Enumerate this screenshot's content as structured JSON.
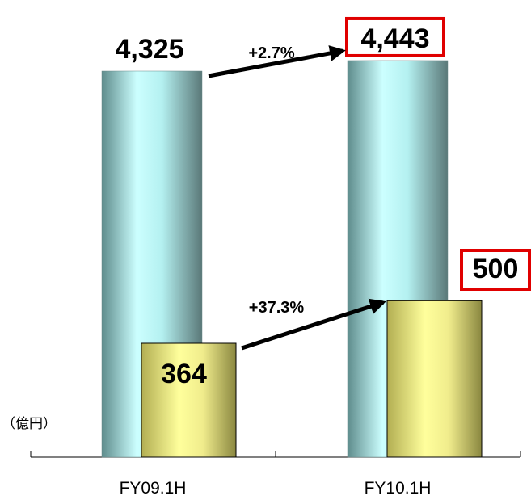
{
  "chart_data": {
    "type": "bar",
    "unit_label": "（億円）",
    "categories": [
      "FY09.1H",
      "FY10.1H"
    ],
    "series": [
      {
        "values": [
          4325,
          4443
        ],
        "labels": [
          "4,325",
          "4,443"
        ],
        "color": "#9fdede"
      },
      {
        "values": [
          364,
          500
        ],
        "labels": [
          "364",
          "500"
        ],
        "color": "#e8e48a"
      }
    ],
    "growth": [
      {
        "series_index": 0,
        "label": "+2.7%"
      },
      {
        "series_index": 1,
        "label": "+37.3%"
      }
    ],
    "highlight_color": "#e00000",
    "highlighted_category_index": 1,
    "xlabel": "",
    "ylabel": "",
    "gridlines": false
  }
}
